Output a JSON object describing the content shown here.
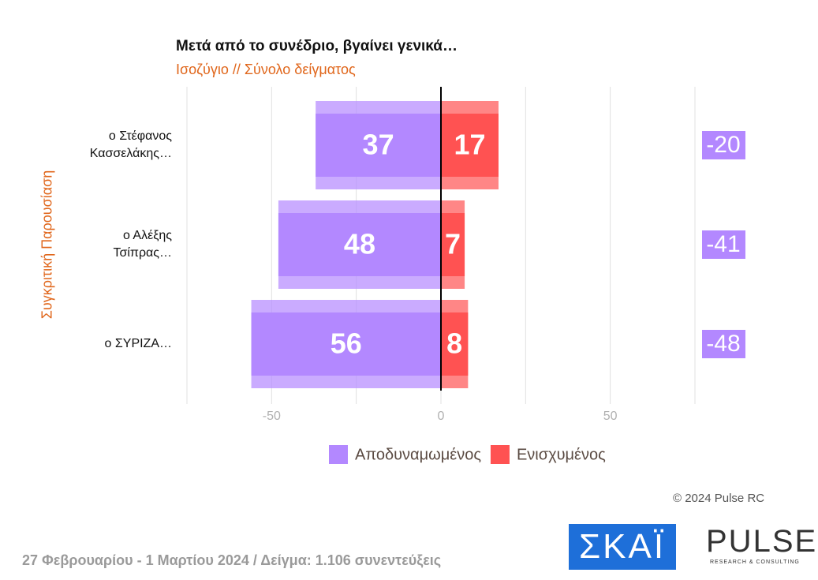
{
  "chart_data": {
    "type": "diverging-bar",
    "title": "Μετά από το συνέδριο, βγαίνει γενικά…",
    "subtitle": "Ισοζύγιο // Σύνολο δείγματος",
    "y_label": "Συγκριτική Παρουσίαση",
    "categories": [
      "ο Στέφανος Κασσελάκης…",
      "ο Αλέξης Τσίπρας…",
      "ο ΣΥΡΙΖΑ…"
    ],
    "series": [
      {
        "name": "Αποδυναμωμένος",
        "color": "#b388ff",
        "values": [
          -37,
          -48,
          -56
        ],
        "value_labels": [
          "37",
          "48",
          "56"
        ]
      },
      {
        "name": "Ενισχυμένος",
        "color": "#ff5252",
        "values": [
          17,
          7,
          8
        ]
      }
    ],
    "balance": {
      "values": [
        -20,
        -41,
        -48
      ],
      "color": "#b388ff"
    },
    "xlim": [
      -75,
      75
    ],
    "xticks": [
      -50,
      0,
      50
    ],
    "xminor": [
      -75,
      -25,
      25,
      75
    ],
    "grid": true,
    "copyright": "© 2024 Pulse RC",
    "footer": "27 Φεβρουαρίου - 1 Μαρτίου 2024  /  Δείγμα:  1.106 συνεντεύξεις",
    "logos": [
      "ΣΚΑΪ",
      "PULSE",
      "RESEARCH & CONSULTING"
    ]
  }
}
